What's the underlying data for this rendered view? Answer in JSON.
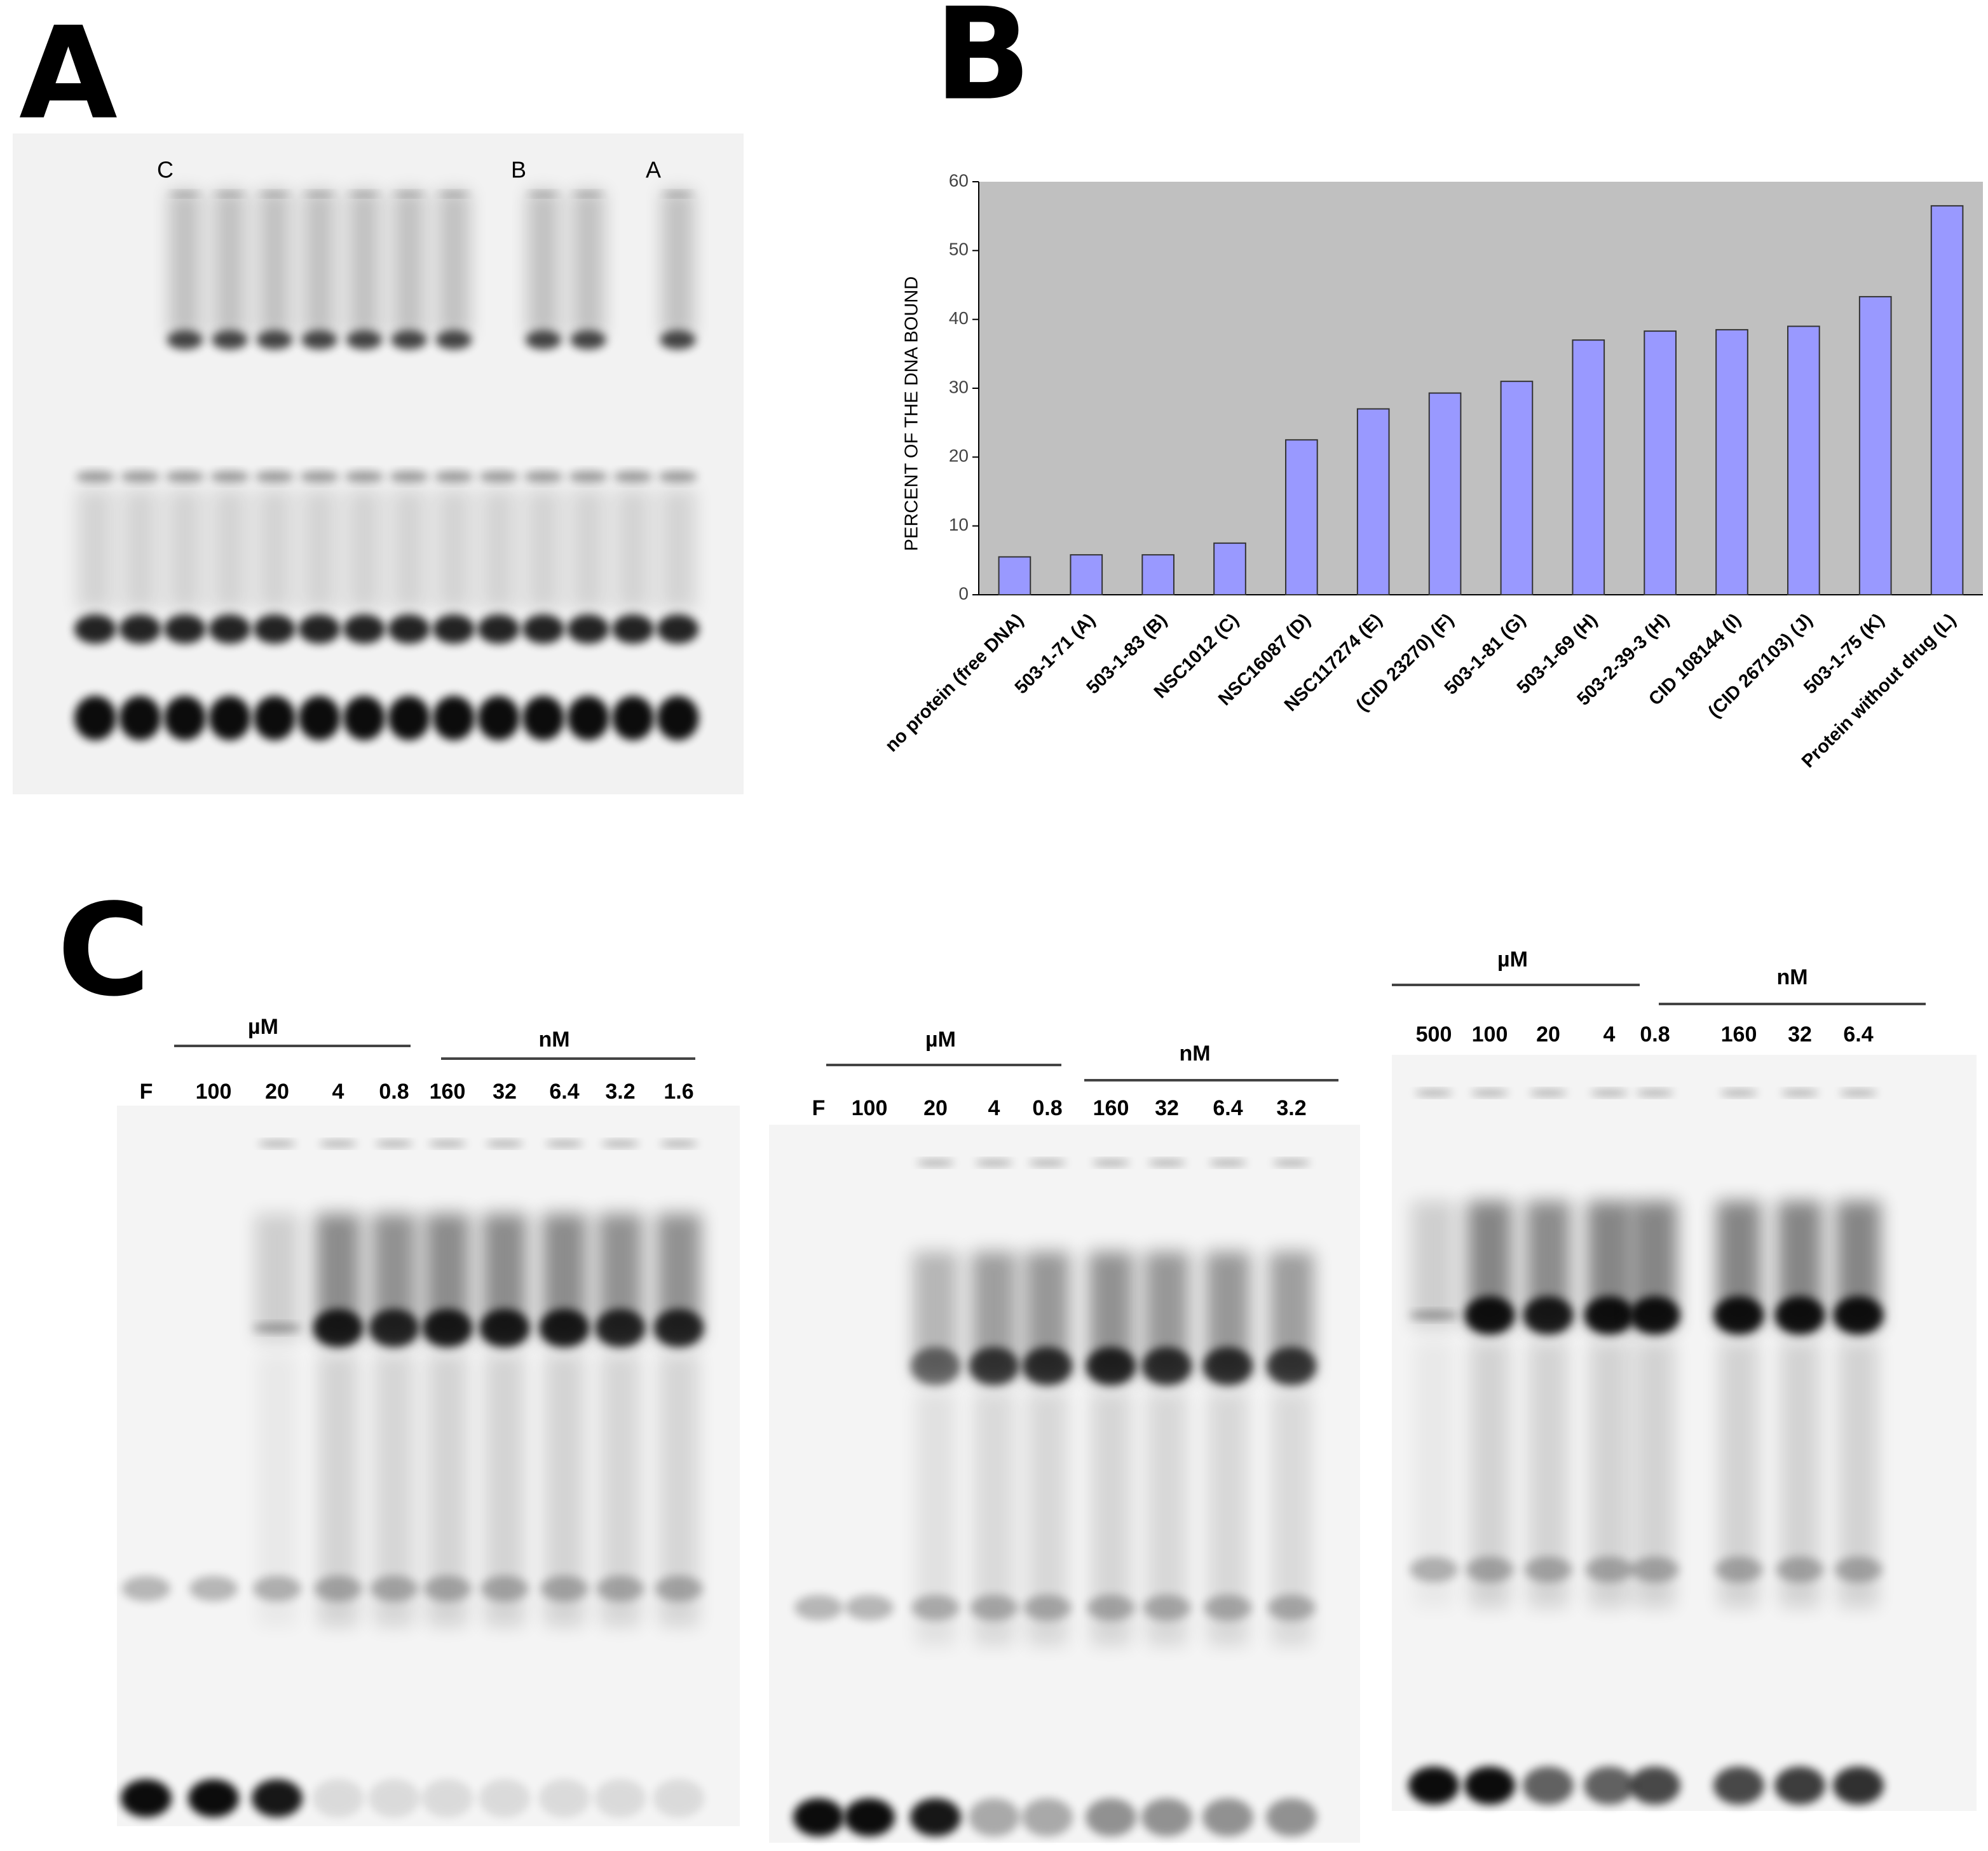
{
  "panel_a": {
    "label": "A",
    "lane_markers": [
      "C",
      "B",
      "A"
    ]
  },
  "panel_b": {
    "label": "B"
  },
  "panel_c": {
    "label": "C",
    "gels": [
      {
        "units": [
          "µM",
          "nM"
        ],
        "lanes": [
          "F",
          "100",
          "20",
          "4",
          "0.8",
          "160",
          "32",
          "6.4",
          "3.2",
          "1.6"
        ]
      },
      {
        "units": [
          "µM",
          "nM"
        ],
        "lanes": [
          "F",
          "100",
          "20",
          "4",
          "0.8",
          "160",
          "32",
          "6.4",
          "3.2"
        ]
      },
      {
        "units": [
          "µM",
          "nM"
        ],
        "lanes": [
          "500",
          "100",
          "20",
          "4",
          "0.8",
          "160",
          "32",
          "6.4"
        ]
      }
    ]
  },
  "chart_data": {
    "type": "bar",
    "ylabel": "PERCENT OF THE DNA BOUND",
    "categories": [
      "no protein (free DNA)",
      "503-1-71 (A)",
      "503-1-83 (B)",
      "NSC1012 (C)",
      "NSC16087 (D)",
      "NSC117274 (E)",
      "(CID 23270)  (F)",
      "503-1-81 (G)",
      "503-1-69 (H)",
      "503-2-39-3 (H)",
      "CID 108144 (I)",
      "(CID 267103)  (J)",
      "503-1-75 (K)",
      "Protein without drug (L)"
    ],
    "values": [
      5.5,
      5.8,
      5.8,
      7.5,
      22.5,
      27,
      29.3,
      31,
      37,
      38.3,
      38.5,
      39,
      43.3,
      56.5
    ],
    "color": "#9999ff",
    "background": "#c0c0c0",
    "ylim": [
      0,
      60
    ],
    "yticks": [
      0,
      10,
      20,
      30,
      40,
      50,
      60
    ]
  }
}
